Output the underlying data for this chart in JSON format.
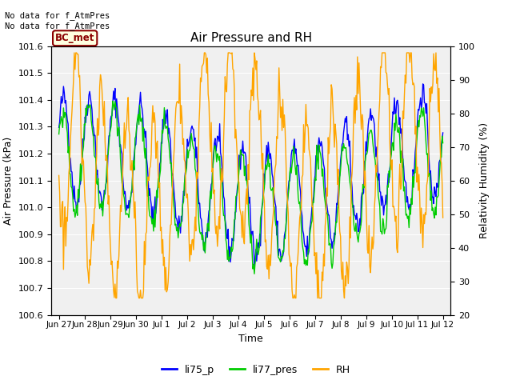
{
  "title": "Air Pressure and RH",
  "xlabel": "Time",
  "ylabel_left": "Air Pressure (kPa)",
  "ylabel_right": "Relativity Humidity (%)",
  "ylim_left": [
    100.6,
    101.6
  ],
  "ylim_right": [
    20,
    100
  ],
  "fig_facecolor": "#ffffff",
  "plot_bg_color": "#f0f0f0",
  "annotation_text": "No data for f_AtmPres\nNo data for f_AtmPres",
  "box_label": "BC_met",
  "legend_labels": [
    "li75_p",
    "li77_pres",
    "RH"
  ],
  "line_colors": [
    "blue",
    "#00cc00",
    "orange"
  ],
  "x_tick_labels": [
    "Jun 27",
    "Jun 28",
    "Jun 29",
    "Jun 30",
    "Jul 1",
    "Jul 2",
    "Jul 3",
    "Jul 4",
    "Jul 5",
    "Jul 6",
    "Jul 7",
    "Jul 8",
    "Jul 9",
    "Jul 10",
    "Jul 11",
    "Jul 12"
  ],
  "yticks_left": [
    100.6,
    100.7,
    100.8,
    100.9,
    101.0,
    101.1,
    101.2,
    101.3,
    101.4,
    101.5,
    101.6
  ],
  "yticks_right": [
    20,
    30,
    40,
    50,
    60,
    70,
    80,
    90,
    100
  ],
  "n_points": 500,
  "seed": 42
}
